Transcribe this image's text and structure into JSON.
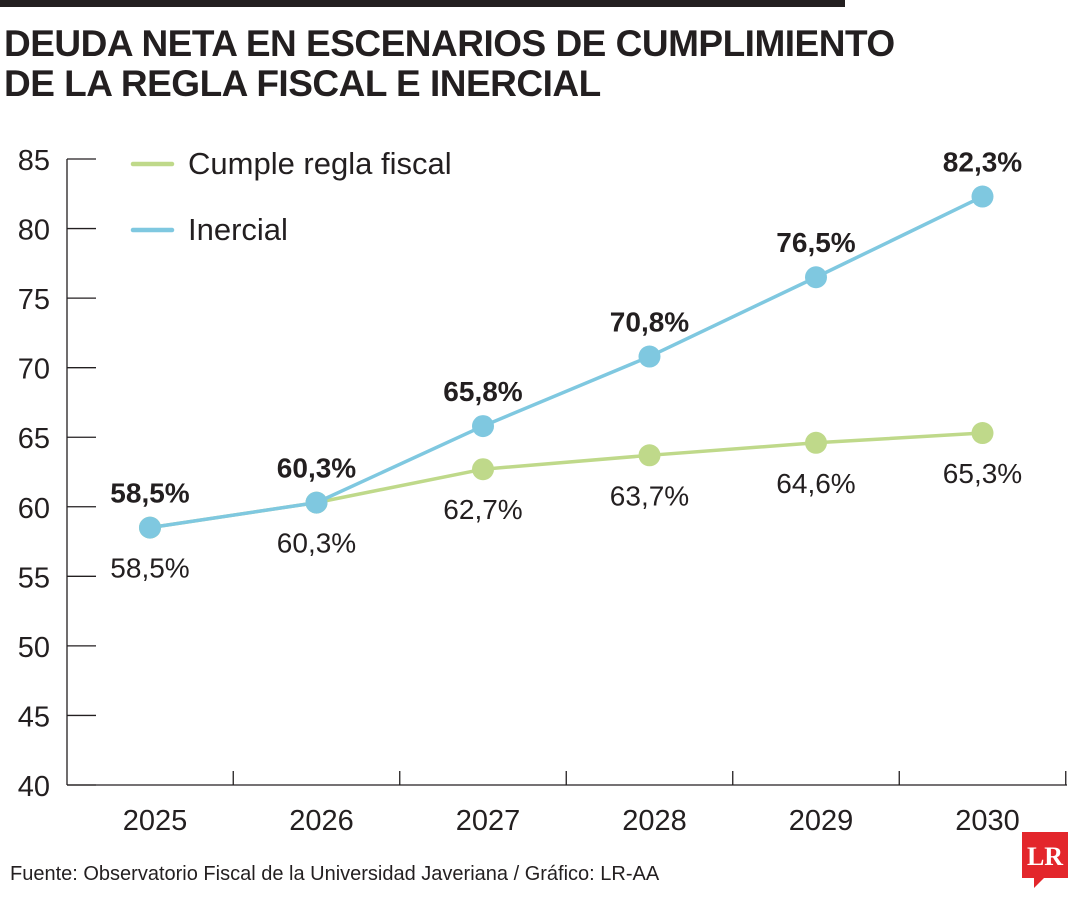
{
  "title": {
    "line1": "DEUDA NETA EN ESCENARIOS DE CUMPLIMIENTO",
    "line2": "DE LA REGLA FISCAL E INERCIAL"
  },
  "source": "Fuente: Observatorio Fiscal de la Universidad Javeriana / Gráfico: LR-AA",
  "logo": {
    "text": "LR",
    "color": "#e3262b"
  },
  "chart_data": {
    "type": "line",
    "title": "DEUDA NETA EN ESCENARIOS DE CUMPLIMIENTO DE LA REGLA FISCAL E INERCIAL",
    "x": [
      "2025",
      "2026",
      "2027",
      "2028",
      "2029",
      "2030"
    ],
    "ylim": [
      40,
      85
    ],
    "yticks": [
      40,
      45,
      50,
      55,
      60,
      65,
      70,
      75,
      80,
      85
    ],
    "grid": false,
    "legend": "top-left",
    "series": [
      {
        "name": "Cumple regla fiscal",
        "color": "#bfd98a",
        "values": [
          58.5,
          60.3,
          62.7,
          63.7,
          64.6,
          65.3
        ],
        "labels": [
          "58,5%",
          "60,3%",
          "62,7%",
          "63,7%",
          "64,6%",
          "65,3%"
        ],
        "label_style": "normal"
      },
      {
        "name": "Inercial",
        "color": "#7fc8e0",
        "values": [
          58.5,
          60.3,
          65.8,
          70.8,
          76.5,
          82.3
        ],
        "labels": [
          "58,5%",
          "60,3%",
          "65,8%",
          "70,8%",
          "76,5%",
          "82,3%"
        ],
        "label_style": "bold"
      }
    ]
  }
}
